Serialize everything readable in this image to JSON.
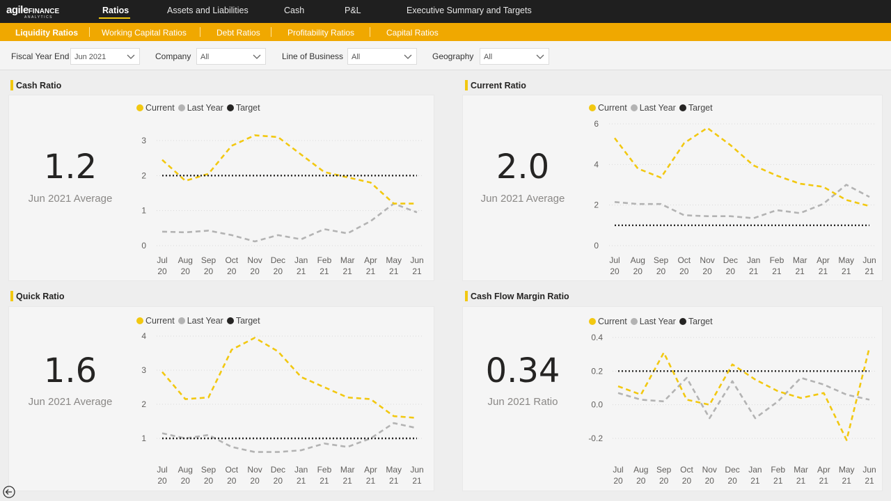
{
  "logo": {
    "text_main": "agile",
    "text_fin": "FINANCE",
    "text_sub": "ANALYTICS"
  },
  "nav": {
    "tabs": [
      {
        "label": "Ratios",
        "active": true
      },
      {
        "label": "Assets and Liabilities"
      },
      {
        "label": "Cash"
      },
      {
        "label": "P&L"
      },
      {
        "label": "Executive Summary and Targets"
      }
    ]
  },
  "subnav": {
    "tabs": [
      {
        "label": "Liquidity Ratios",
        "active": true
      },
      {
        "label": "Working Capital Ratios"
      },
      {
        "label": "Debt Ratios"
      },
      {
        "label": "Profitability Ratios"
      },
      {
        "label": "Capital Ratios"
      }
    ]
  },
  "filters": [
    {
      "label": "Fiscal Year End",
      "value": "Jun 2021"
    },
    {
      "label": "Company",
      "value": "All"
    },
    {
      "label": "Line of Business",
      "value": "All"
    },
    {
      "label": "Geography",
      "value": "All"
    }
  ],
  "colors": {
    "current": "#f2c811",
    "last_year": "#b3b3b3",
    "target": "#252423",
    "accent": "#f0a800"
  },
  "legend": {
    "current": "Current",
    "last_year": "Last Year",
    "target": "Target"
  },
  "cards": [
    {
      "title": "Cash Ratio",
      "kpi_value": "1.2",
      "kpi_label": "Jun 2021 Average"
    },
    {
      "title": "Current Ratio",
      "kpi_value": "2.0",
      "kpi_label": "Jun 2021 Average"
    },
    {
      "title": "Quick Ratio",
      "kpi_value": "1.6",
      "kpi_label": "Jun 2021 Average"
    },
    {
      "title": "Cash Flow Margin Ratio",
      "kpi_value": "0.34",
      "kpi_label": "Jun 2021 Ratio"
    }
  ],
  "chart_data": [
    {
      "type": "line",
      "title": "Cash Ratio",
      "categories": [
        [
          "Jul",
          "20"
        ],
        [
          "Aug",
          "20"
        ],
        [
          "Sep",
          "20"
        ],
        [
          "Oct",
          "20"
        ],
        [
          "Nov",
          "20"
        ],
        [
          "Dec",
          "20"
        ],
        [
          "Jan",
          "21"
        ],
        [
          "Feb",
          "21"
        ],
        [
          "Mar",
          "21"
        ],
        [
          "Apr",
          "21"
        ],
        [
          "May",
          "21"
        ],
        [
          "Jun",
          "21"
        ]
      ],
      "yticks": [
        "0",
        "1",
        "2",
        "3"
      ],
      "ylim": [
        0,
        3
      ],
      "series": [
        {
          "name": "Current",
          "values": [
            2.45,
            1.85,
            2.05,
            2.85,
            3.15,
            3.1,
            2.6,
            2.1,
            1.95,
            1.8,
            1.2,
            1.2
          ]
        },
        {
          "name": "Last Year",
          "values": [
            0.4,
            0.38,
            0.43,
            0.3,
            0.12,
            0.3,
            0.18,
            0.47,
            0.35,
            0.7,
            1.2,
            0.95
          ]
        },
        {
          "name": "Target",
          "values": [
            2,
            2,
            2,
            2,
            2,
            2,
            2,
            2,
            2,
            2,
            2,
            2
          ]
        }
      ]
    },
    {
      "type": "line",
      "title": "Current Ratio",
      "categories": [
        [
          "Jul",
          "20"
        ],
        [
          "Aug",
          "20"
        ],
        [
          "Sep",
          "20"
        ],
        [
          "Oct",
          "20"
        ],
        [
          "Nov",
          "20"
        ],
        [
          "Dec",
          "20"
        ],
        [
          "Jan",
          "21"
        ],
        [
          "Feb",
          "21"
        ],
        [
          "Mar",
          "21"
        ],
        [
          "Apr",
          "21"
        ],
        [
          "May",
          "21"
        ],
        [
          "Jun",
          "21"
        ]
      ],
      "yticks": [
        "0",
        "2",
        "4",
        "6"
      ],
      "ylim": [
        0,
        6
      ],
      "series": [
        {
          "name": "Current",
          "values": [
            5.3,
            3.8,
            3.35,
            5.05,
            5.8,
            4.95,
            3.95,
            3.45,
            3.05,
            2.9,
            2.25,
            1.95
          ]
        },
        {
          "name": "Last Year",
          "values": [
            2.15,
            2.05,
            2.05,
            1.5,
            1.45,
            1.45,
            1.35,
            1.75,
            1.6,
            2.05,
            3.0,
            2.4
          ]
        },
        {
          "name": "Target",
          "values": [
            1,
            1,
            1,
            1,
            1,
            1,
            1,
            1,
            1,
            1,
            1,
            1
          ]
        }
      ]
    },
    {
      "type": "line",
      "title": "Quick Ratio",
      "categories": [
        [
          "Jul",
          "20"
        ],
        [
          "Aug",
          "20"
        ],
        [
          "Sep",
          "20"
        ],
        [
          "Oct",
          "20"
        ],
        [
          "Nov",
          "20"
        ],
        [
          "Dec",
          "20"
        ],
        [
          "Jan",
          "21"
        ],
        [
          "Feb",
          "21"
        ],
        [
          "Mar",
          "21"
        ],
        [
          "Apr",
          "21"
        ],
        [
          "May",
          "21"
        ],
        [
          "Jun",
          "21"
        ]
      ],
      "yticks": [
        "1",
        "2",
        "3",
        "4"
      ],
      "ylim": [
        0,
        4
      ],
      "series": [
        {
          "name": "Current",
          "values": [
            2.95,
            2.15,
            2.2,
            3.6,
            3.95,
            3.55,
            2.8,
            2.5,
            2.2,
            2.15,
            1.65,
            1.6
          ]
        },
        {
          "name": "Last Year",
          "values": [
            1.15,
            1.0,
            1.1,
            0.75,
            0.6,
            0.6,
            0.65,
            0.85,
            0.75,
            1.0,
            1.45,
            1.3
          ]
        },
        {
          "name": "Target",
          "values": [
            1,
            1,
            1,
            1,
            1,
            1,
            1,
            1,
            1,
            1,
            1,
            1
          ]
        }
      ]
    },
    {
      "type": "line",
      "title": "Cash Flow Margin Ratio",
      "categories": [
        [
          "Jul",
          "20"
        ],
        [
          "Aug",
          "20"
        ],
        [
          "Sep",
          "20"
        ],
        [
          "Oct",
          "20"
        ],
        [
          "Nov",
          "20"
        ],
        [
          "Dec",
          "20"
        ],
        [
          "Jan",
          "21"
        ],
        [
          "Feb",
          "21"
        ],
        [
          "Mar",
          "21"
        ],
        [
          "Apr",
          "21"
        ],
        [
          "May",
          "21"
        ],
        [
          "Jun",
          "21"
        ]
      ],
      "yticks": [
        "-0.2",
        "0.0",
        "0.2",
        "0.4"
      ],
      "ylim": [
        -0.2,
        0.4
      ],
      "series": [
        {
          "name": "Current",
          "values": [
            0.11,
            0.06,
            0.31,
            0.03,
            0.0,
            0.24,
            0.15,
            0.08,
            0.04,
            0.07,
            -0.21,
            0.34
          ]
        },
        {
          "name": "Last Year",
          "values": [
            0.07,
            0.03,
            0.02,
            0.16,
            -0.08,
            0.14,
            -0.08,
            0.02,
            0.16,
            0.12,
            0.06,
            0.03
          ]
        },
        {
          "name": "Target",
          "values": [
            0.2,
            0.2,
            0.2,
            0.2,
            0.2,
            0.2,
            0.2,
            0.2,
            0.2,
            0.2,
            0.2,
            0.2
          ]
        }
      ]
    }
  ]
}
